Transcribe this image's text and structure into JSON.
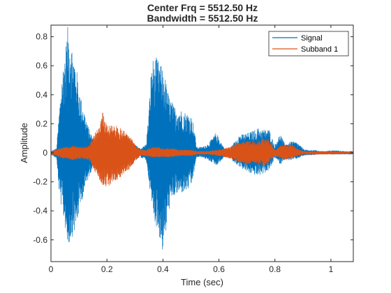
{
  "chart_data": {
    "type": "line",
    "title": [
      "Center Frq = 5512.50 Hz",
      "Bandwidth = 5512.50 Hz"
    ],
    "xlabel": "Time (sec)",
    "ylabel": "Amplitude",
    "xlim": [
      0,
      1.08
    ],
    "ylim": [
      -0.75,
      0.88
    ],
    "xticks": [
      0,
      0.2,
      0.4,
      0.6,
      0.8,
      1
    ],
    "xtick_labels": [
      "0",
      "0.2",
      "0.4",
      "0.6",
      "0.8",
      "1"
    ],
    "yticks": [
      -0.6,
      -0.4,
      -0.2,
      0,
      0.2,
      0.4,
      0.6,
      0.8
    ],
    "ytick_labels": [
      "-0.6",
      "-0.4",
      "-0.2",
      "0",
      "0.2",
      "0.4",
      "0.6",
      "0.8"
    ],
    "grid": false,
    "legend_position": "top-right",
    "series": [
      {
        "name": "Signal",
        "color": "#0072BD",
        "envelope": [
          [
            0.0,
            0.01,
            -0.01
          ],
          [
            0.02,
            0.03,
            -0.04
          ],
          [
            0.03,
            0.3,
            -0.3
          ],
          [
            0.04,
            0.55,
            -0.4
          ],
          [
            0.055,
            0.78,
            -0.56
          ],
          [
            0.06,
            0.87,
            -0.66
          ],
          [
            0.07,
            0.8,
            -0.6
          ],
          [
            0.08,
            0.68,
            -0.56
          ],
          [
            0.09,
            0.6,
            -0.52
          ],
          [
            0.1,
            0.45,
            -0.42
          ],
          [
            0.11,
            0.35,
            -0.33
          ],
          [
            0.12,
            0.28,
            -0.26
          ],
          [
            0.13,
            0.2,
            -0.2
          ],
          [
            0.15,
            0.1,
            -0.09
          ],
          [
            0.16,
            0.06,
            -0.06
          ],
          [
            0.18,
            0.1,
            -0.09
          ],
          [
            0.2,
            0.11,
            -0.1
          ],
          [
            0.23,
            0.12,
            -0.11
          ],
          [
            0.26,
            0.1,
            -0.09
          ],
          [
            0.29,
            0.07,
            -0.06
          ],
          [
            0.32,
            0.03,
            -0.03
          ],
          [
            0.34,
            0.06,
            -0.05
          ],
          [
            0.35,
            0.3,
            -0.2
          ],
          [
            0.36,
            0.64,
            -0.38
          ],
          [
            0.375,
            0.66,
            -0.5
          ],
          [
            0.39,
            0.62,
            -0.6
          ],
          [
            0.4,
            0.57,
            -0.7
          ],
          [
            0.41,
            0.5,
            -0.56
          ],
          [
            0.42,
            0.4,
            -0.4
          ],
          [
            0.44,
            0.32,
            -0.3
          ],
          [
            0.46,
            0.3,
            -0.28
          ],
          [
            0.48,
            0.28,
            -0.27
          ],
          [
            0.5,
            0.26,
            -0.24
          ],
          [
            0.51,
            0.2,
            -0.15
          ],
          [
            0.52,
            0.04,
            -0.03
          ],
          [
            0.54,
            0.04,
            -0.03
          ],
          [
            0.56,
            0.06,
            -0.05
          ],
          [
            0.58,
            0.11,
            -0.07
          ],
          [
            0.59,
            0.14,
            -0.09
          ],
          [
            0.6,
            0.1,
            -0.07
          ],
          [
            0.62,
            0.03,
            -0.03
          ],
          [
            0.64,
            0.02,
            -0.02
          ],
          [
            0.65,
            0.06,
            -0.06
          ],
          [
            0.67,
            0.12,
            -0.09
          ],
          [
            0.69,
            0.13,
            -0.12
          ],
          [
            0.71,
            0.14,
            -0.14
          ],
          [
            0.74,
            0.17,
            -0.16
          ],
          [
            0.76,
            0.16,
            -0.14
          ],
          [
            0.78,
            0.16,
            -0.12
          ],
          [
            0.79,
            0.1,
            -0.08
          ],
          [
            0.8,
            0.05,
            -0.03
          ],
          [
            0.81,
            0.1,
            -0.06
          ],
          [
            0.82,
            0.13,
            -0.08
          ],
          [
            0.83,
            0.08,
            -0.05
          ],
          [
            0.84,
            0.06,
            -0.05
          ],
          [
            0.86,
            0.08,
            -0.05
          ],
          [
            0.88,
            0.07,
            -0.04
          ],
          [
            0.89,
            0.05,
            -0.03
          ],
          [
            0.9,
            0.03,
            -0.02
          ],
          [
            0.92,
            0.015,
            -0.015
          ],
          [
            0.94,
            0.02,
            -0.015
          ],
          [
            0.96,
            0.01,
            -0.01
          ],
          [
            0.98,
            0.01,
            -0.01
          ],
          [
            1.0,
            0.015,
            -0.01
          ],
          [
            1.02,
            0.015,
            -0.01
          ],
          [
            1.05,
            0.01,
            -0.01
          ],
          [
            1.08,
            0.01,
            -0.01
          ]
        ]
      },
      {
        "name": "Subband 1",
        "color": "#D95319",
        "envelope": [
          [
            0.0,
            0.01,
            -0.01
          ],
          [
            0.02,
            0.02,
            -0.02
          ],
          [
            0.04,
            0.04,
            -0.04
          ],
          [
            0.06,
            0.04,
            -0.04
          ],
          [
            0.08,
            0.05,
            -0.05
          ],
          [
            0.1,
            0.04,
            -0.04
          ],
          [
            0.12,
            0.04,
            -0.04
          ],
          [
            0.14,
            0.06,
            -0.06
          ],
          [
            0.16,
            0.15,
            -0.14
          ],
          [
            0.17,
            0.18,
            -0.18
          ],
          [
            0.185,
            0.28,
            -0.22
          ],
          [
            0.2,
            0.2,
            -0.24
          ],
          [
            0.22,
            0.2,
            -0.2
          ],
          [
            0.24,
            0.18,
            -0.18
          ],
          [
            0.26,
            0.16,
            -0.15
          ],
          [
            0.28,
            0.12,
            -0.11
          ],
          [
            0.3,
            0.06,
            -0.06
          ],
          [
            0.32,
            0.02,
            -0.02
          ],
          [
            0.34,
            0.02,
            -0.02
          ],
          [
            0.36,
            0.04,
            -0.03
          ],
          [
            0.38,
            0.04,
            -0.03
          ],
          [
            0.4,
            0.03,
            -0.03
          ],
          [
            0.43,
            0.03,
            -0.03
          ],
          [
            0.46,
            0.02,
            -0.02
          ],
          [
            0.5,
            0.02,
            -0.02
          ],
          [
            0.52,
            0.01,
            -0.01
          ],
          [
            0.56,
            0.01,
            -0.01
          ],
          [
            0.6,
            0.02,
            -0.02
          ],
          [
            0.64,
            0.04,
            -0.04
          ],
          [
            0.66,
            0.06,
            -0.06
          ],
          [
            0.68,
            0.08,
            -0.07
          ],
          [
            0.7,
            0.08,
            -0.08
          ],
          [
            0.72,
            0.08,
            -0.07
          ],
          [
            0.74,
            0.09,
            -0.08
          ],
          [
            0.76,
            0.1,
            -0.09
          ],
          [
            0.775,
            0.1,
            -0.08
          ],
          [
            0.79,
            0.05,
            -0.04
          ],
          [
            0.8,
            0.02,
            -0.02
          ],
          [
            0.82,
            0.05,
            -0.04
          ],
          [
            0.84,
            0.06,
            -0.05
          ],
          [
            0.86,
            0.06,
            -0.04
          ],
          [
            0.88,
            0.03,
            -0.02
          ],
          [
            0.9,
            0.01,
            -0.01
          ],
          [
            0.95,
            0.01,
            -0.01
          ],
          [
            1.0,
            0.01,
            -0.01
          ],
          [
            1.08,
            0.005,
            -0.005
          ]
        ]
      }
    ]
  }
}
